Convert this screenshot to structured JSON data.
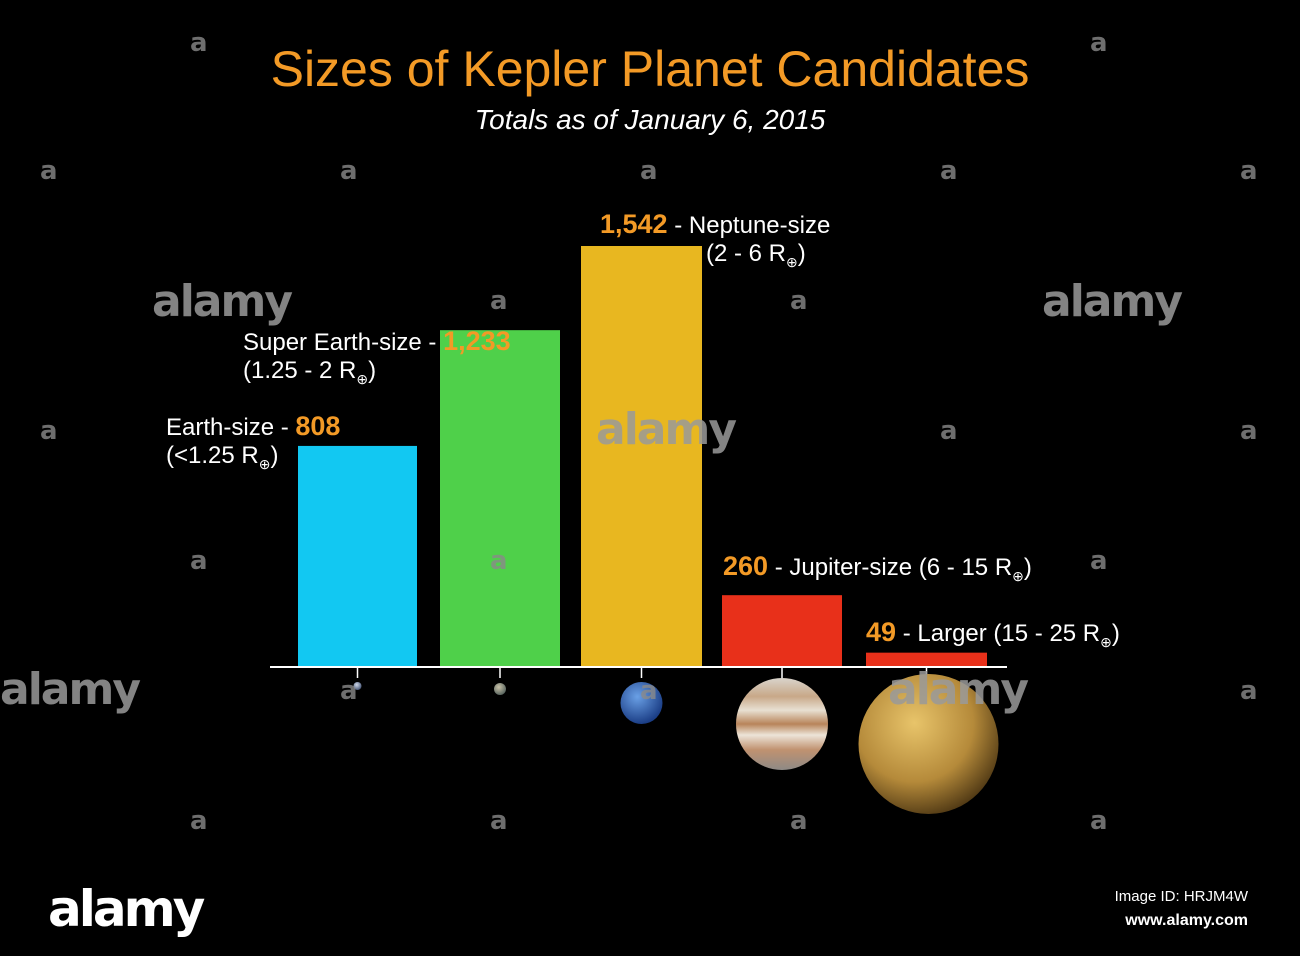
{
  "chart_data": {
    "type": "bar",
    "title": "Sizes of Kepler Planet Candidates",
    "subtitle": "Totals as of January 6, 2015",
    "categories": [
      "Earth-size",
      "Super Earth-size",
      "Neptune-size",
      "Jupiter-size",
      "Larger"
    ],
    "values": [
      808,
      1233,
      1542,
      260,
      49
    ],
    "value_labels": [
      "808",
      "1,233",
      "1,542",
      "260",
      "49"
    ],
    "ranges": [
      "(<1.25 R",
      "(1.25 - 2 R",
      "(2 - 6 R",
      "(6 - 15 R",
      "(15 - 25 R"
    ],
    "colors": [
      "#12c8f2",
      "#4fd04a",
      "#e8b720",
      "#e8301a",
      "#e8301a"
    ],
    "planet_icons": [
      "earth-icon",
      "super-earth-icon",
      "neptune-icon",
      "jupiter-icon",
      "larger-planet-icon"
    ],
    "ylim": [
      0,
      1700
    ],
    "grid": false,
    "xlabel": "",
    "ylabel": ""
  },
  "symbols": {
    "earth": "⊕",
    "close_paren": ")"
  },
  "watermark": {
    "logo": "alamy",
    "letter": "a",
    "image_id": "Image ID: HRJM4W",
    "url": "www.alamy.com"
  }
}
